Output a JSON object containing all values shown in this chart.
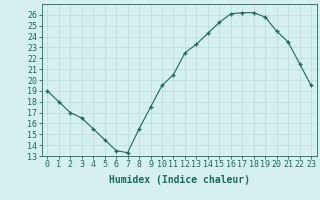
{
  "x": [
    0,
    1,
    2,
    3,
    4,
    5,
    6,
    7,
    8,
    9,
    10,
    11,
    12,
    13,
    14,
    15,
    16,
    17,
    18,
    19,
    20,
    21,
    22,
    23
  ],
  "y": [
    19,
    18,
    17,
    16.5,
    15.5,
    14.5,
    13.5,
    13.3,
    15.5,
    17.5,
    19.5,
    20.5,
    22.5,
    23.3,
    24.3,
    25.3,
    26.1,
    26.2,
    26.2,
    25.8,
    24.5,
    23.5,
    21.5,
    19.5
  ],
  "line_color": "#1a6b5a",
  "marker": "+",
  "marker_size": 3,
  "marker_lw": 1.0,
  "line_width": 0.8,
  "bg_color": "#d6f0ef",
  "grid_color": "#b8dbd8",
  "xlabel": "Humidex (Indice chaleur)",
  "xlabel_fontsize": 7,
  "tick_fontsize": 6,
  "xlim": [
    -0.5,
    23.5
  ],
  "ylim": [
    13,
    27
  ],
  "yticks": [
    13,
    14,
    15,
    16,
    17,
    18,
    19,
    20,
    21,
    22,
    23,
    24,
    25,
    26
  ],
  "xticks": [
    0,
    1,
    2,
    3,
    4,
    5,
    6,
    7,
    8,
    9,
    10,
    11,
    12,
    13,
    14,
    15,
    16,
    17,
    18,
    19,
    20,
    21,
    22,
    23
  ],
  "xtick_labels": [
    "0",
    "1",
    "2",
    "3",
    "4",
    "5",
    "6",
    "7",
    "8",
    "9",
    "10",
    "11",
    "12",
    "13",
    "14",
    "15",
    "16",
    "17",
    "18",
    "19",
    "20",
    "21",
    "22",
    "23"
  ]
}
